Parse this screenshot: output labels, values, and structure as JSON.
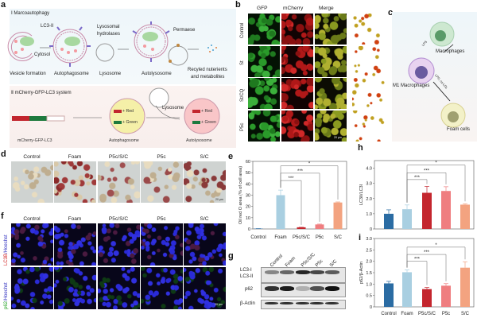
{
  "panels": {
    "a": "a",
    "b": "b",
    "c": "c",
    "d": "d",
    "e": "e",
    "f": "f",
    "g": "g",
    "h": "h",
    "i": "i"
  },
  "panel_a": {
    "section1": "Ⅰ  Marcoautophagy",
    "lc3": "LC3-II",
    "cytosol": "Cytosol",
    "hydrolases_1": "Lysosomal",
    "hydrolases_2": "hydrolases",
    "permease": "Permaese",
    "stages": [
      "Vesicle formation",
      "Autophagosome",
      "Lysosome",
      "Autolysosome"
    ],
    "recycled_1": "Recyled nuterients",
    "recycled_2": "and metabolites",
    "section2": "Ⅱ  mCherry-GFP-LC3 system",
    "red": "+ Red",
    "green": "+ Green",
    "lysosome": "Lysosome",
    "bottom": [
      "mCherry-GFP-LC3",
      "Autophagosome",
      "Autolysosome"
    ]
  },
  "panel_b": {
    "columns": [
      "GFP",
      "mCherry",
      "Merge"
    ],
    "rows": [
      "Control",
      "St",
      "St/CQ",
      "P5c"
    ],
    "scale": "20 μm"
  },
  "panel_c": {
    "macrophages": "Macrophages",
    "lps": "LPS",
    "m1": "M1  Macrophages",
    "lps_ox": "LPS, ox-LDL",
    "foam": "Foam cells"
  },
  "panel_d": {
    "columns": [
      "Control",
      "Foam",
      "P5c/S/C",
      "P5c",
      "S/C"
    ],
    "scale": "20 μm"
  },
  "panel_f": {
    "columns": [
      "Control",
      "Foam",
      "P5c/S/C",
      "P5c",
      "S/C"
    ],
    "row1_a": "LC3B",
    "row1_b": "/Hoechst",
    "row2_a": "p62",
    "row2_b": "/Hoechst",
    "scale": "20 μm"
  },
  "panel_g": {
    "lanes": [
      "Control",
      "Foam",
      "P5c/S/C",
      "P5c",
      "S/C"
    ],
    "rows": [
      "LC3-I",
      "LC3-II",
      "p62",
      "β-Actin"
    ]
  },
  "colors": {
    "Control": "#2b6ca3",
    "Foam": "#a9cfe1",
    "P5c/S/C": "#c4262e",
    "P5c": "#ef7e80",
    "S/C": "#f3a380"
  },
  "chart_data": [
    {
      "id": "e",
      "type": "bar",
      "categories": [
        "Control",
        "Foam",
        "P5c/S/C",
        "P5c",
        "S/C"
      ],
      "values": [
        0.3,
        30,
        1.5,
        4,
        23.5
      ],
      "errors": [
        0,
        4.5,
        0,
        0.3,
        0.5
      ],
      "ylabel": "Oil red O area (% of  cell area)",
      "ylim": [
        0,
        60
      ],
      "yticks": [
        0,
        10,
        20,
        30,
        40,
        50,
        60
      ],
      "ytick_labels": [
        "0",
        "10",
        "20",
        "30",
        "40",
        "50",
        "60"
      ],
      "significance": [
        {
          "from": "Foam",
          "to": "P5c/S/C",
          "label": "***",
          "level": 43
        },
        {
          "from": "Foam",
          "to": "P5c",
          "label": "***",
          "level": 49.5
        },
        {
          "from": "Foam",
          "to": "S/C",
          "label": "*",
          "level": 56
        }
      ]
    },
    {
      "id": "h",
      "type": "bar",
      "categories": [
        "Control",
        "Foam",
        "P5c/S/C",
        "P5c",
        "S/C"
      ],
      "values": [
        1.0,
        1.3,
        2.38,
        2.5,
        1.6
      ],
      "errors": [
        0.26,
        0.28,
        0.42,
        0.28,
        0.06
      ],
      "ylabel": "LC3II/LC3I",
      "ylim": [
        0,
        4.5
      ],
      "yticks": [
        0,
        1,
        2,
        3,
        4
      ],
      "ytick_labels": [
        "0",
        "1.0",
        "2.0",
        "3.0",
        "4.0"
      ],
      "significance": [
        {
          "from": "Foam",
          "to": "P5c/S/C",
          "label": "***",
          "level": 3.25
        },
        {
          "from": "Foam",
          "to": "P5c",
          "label": "***",
          "level": 3.7
        },
        {
          "from": "Foam",
          "to": "S/C",
          "label": "*",
          "level": 4.2
        }
      ]
    },
    {
      "id": "i",
      "type": "bar",
      "categories": [
        "Control",
        "Foam",
        "P5c/S/C",
        "P5c",
        "S/C"
      ],
      "values": [
        1.03,
        1.52,
        0.78,
        0.93,
        1.72
      ],
      "errors": [
        0.09,
        0.1,
        0.07,
        0.09,
        0.26
      ],
      "ylabel": "p62/β-Actin",
      "ylim": [
        0,
        3.0
      ],
      "yticks": [
        0,
        0.5,
        1,
        1.5,
        2,
        2.5,
        3
      ],
      "ytick_labels": [
        "0",
        "0.5",
        "1.0",
        "1.5",
        "2.0",
        "2.5",
        "3.0"
      ],
      "significance": [
        {
          "from": "Foam",
          "to": "P5c/S/C",
          "label": "***",
          "level": 2.0
        },
        {
          "from": "Foam",
          "to": "P5c",
          "label": "***",
          "level": 2.3
        },
        {
          "from": "Foam",
          "to": "S/C",
          "label": "*",
          "level": 2.62
        }
      ]
    }
  ]
}
